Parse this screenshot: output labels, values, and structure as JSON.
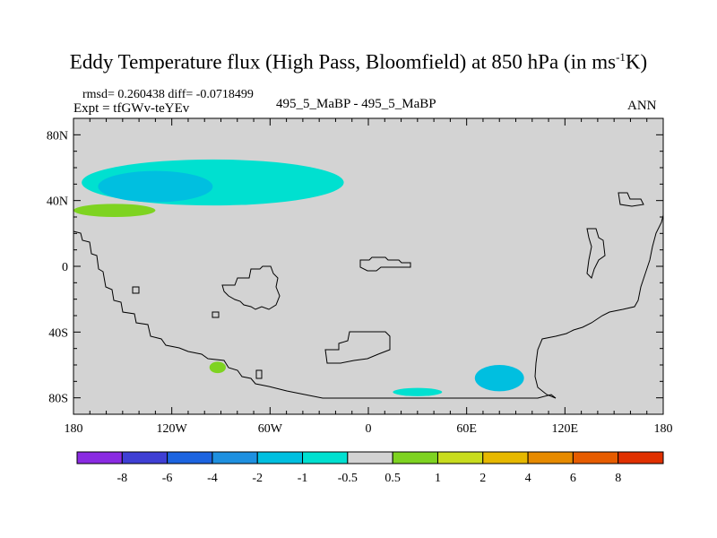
{
  "title": {
    "main": "Eddy Temperature flux (High Pass, Bloomfield) at 850 hPa (in ms",
    "superscript": "-1",
    "tail": "K)"
  },
  "stats": {
    "rmsd_line": "rmsd= 0.260438 diff= -0.0718499",
    "expt_line": "Expt = tfGWv-teYEv"
  },
  "center_label": "495_5_MaBP - 495_5_MaBP",
  "season": "ANN",
  "colors": {
    "land_background": "#d3d3d3",
    "coastline": "#000000"
  },
  "chart_data": {
    "type": "heatmap",
    "projection": "cylindrical-equidistant",
    "x_axis": {
      "range": [
        -180,
        180
      ],
      "ticks": [
        -180,
        -120,
        -60,
        0,
        60,
        120,
        180
      ],
      "tick_labels": [
        "180",
        "120W",
        "60W",
        "0",
        "60E",
        "120E",
        "180"
      ]
    },
    "y_axis": {
      "range": [
        -90,
        90
      ],
      "ticks": [
        80,
        40,
        0,
        -40,
        -80
      ],
      "tick_labels": [
        "80N",
        "40N",
        "0",
        "40S",
        "80S"
      ]
    },
    "colorbar": {
      "orientation": "horizontal",
      "boundaries": [
        "-8",
        "-6",
        "-4",
        "-2",
        "-1",
        "-0.5",
        "0.5",
        "1",
        "2",
        "4",
        "6",
        "8"
      ],
      "colors": [
        "#8a2be2",
        "#3f3fd4",
        "#1c64e0",
        "#1e90e0",
        "#00bfe0",
        "#00e0d0",
        "#d3d3d3",
        "#7ed321",
        "#c8dc1e",
        "#e6b800",
        "#e68a00",
        "#e65c00",
        "#e03000"
      ]
    },
    "regions": [
      {
        "name": "north-pacific-negative-band",
        "level": "-1 to -0.5",
        "color": "#00e0d0",
        "lon": [
          -175,
          -15
        ],
        "lat": [
          37,
          65
        ]
      },
      {
        "name": "north-pacific-core",
        "level": "-2 to -1",
        "color": "#00bfe0",
        "lon": [
          -165,
          -95
        ],
        "lat": [
          39,
          58
        ]
      },
      {
        "name": "north-pacific-positive-strip",
        "level": "0.5 to 1",
        "color": "#7ed321",
        "lon": [
          -180,
          -130
        ],
        "lat": [
          30,
          38
        ]
      },
      {
        "name": "south-atlantic-positive-patch",
        "level": "0.5 to 1",
        "color": "#7ed321",
        "lon": [
          -97,
          -87
        ],
        "lat": [
          -65,
          -58
        ]
      },
      {
        "name": "southern-ocean-negative-60e",
        "level": "-1 to -0.5",
        "color": "#00e0d0",
        "lon": [
          15,
          45
        ],
        "lat": [
          -79,
          -74
        ]
      },
      {
        "name": "southern-ocean-negative-80e",
        "level": "-2 to -1",
        "color": "#00bfe0",
        "lon": [
          65,
          95
        ],
        "lat": [
          -76,
          -60
        ]
      }
    ]
  }
}
